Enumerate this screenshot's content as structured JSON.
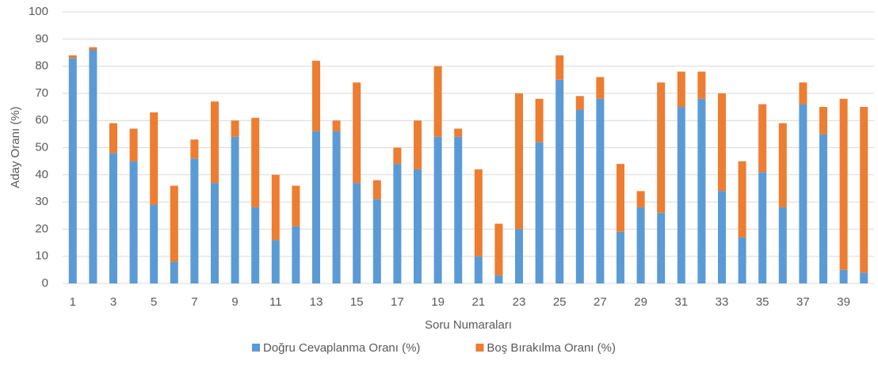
{
  "chart_data": {
    "type": "stacked_bar",
    "y_label": "Aday Oranı (%)",
    "x_label": "Soru Numaraları",
    "categories": [
      "1",
      null,
      "3",
      null,
      "5",
      null,
      "7",
      null,
      "9",
      null,
      "11",
      null,
      "13",
      null,
      "15",
      null,
      "17",
      null,
      "19",
      null,
      "21",
      null,
      "23",
      null,
      "25",
      null,
      "27",
      null,
      "29",
      null,
      "31",
      null,
      "33",
      null,
      "35",
      null,
      "37",
      null,
      "39",
      null
    ],
    "series": [
      {
        "name": "Doğru Cevaplanma Oranı (%)",
        "color": "#5b9bd5",
        "values": [
          83,
          86,
          48,
          45,
          29,
          8,
          46,
          37,
          54,
          28,
          16,
          21,
          56,
          56,
          37,
          31,
          44,
          42,
          54,
          54,
          10,
          3,
          20,
          52,
          75,
          64,
          68,
          19,
          28,
          26,
          65,
          68,
          34,
          17,
          41,
          28,
          66,
          55,
          5,
          4
        ]
      },
      {
        "name": "Boş Bırakılma Oranı (%)",
        "color": "#ed7d31",
        "values": [
          1,
          1,
          11,
          12,
          34,
          28,
          7,
          30,
          6,
          33,
          24,
          15,
          26,
          4,
          37,
          7,
          6,
          18,
          26,
          3,
          32,
          19,
          50,
          16,
          9,
          5,
          8,
          25,
          6,
          48,
          13,
          10,
          36,
          28,
          25,
          31,
          8,
          10,
          63,
          61
        ]
      }
    ],
    "ylim": [
      0,
      100
    ],
    "yticks": [
      0,
      10,
      20,
      30,
      40,
      50,
      60,
      70,
      80,
      90,
      100
    ],
    "grid": true,
    "legend": "bottom"
  }
}
